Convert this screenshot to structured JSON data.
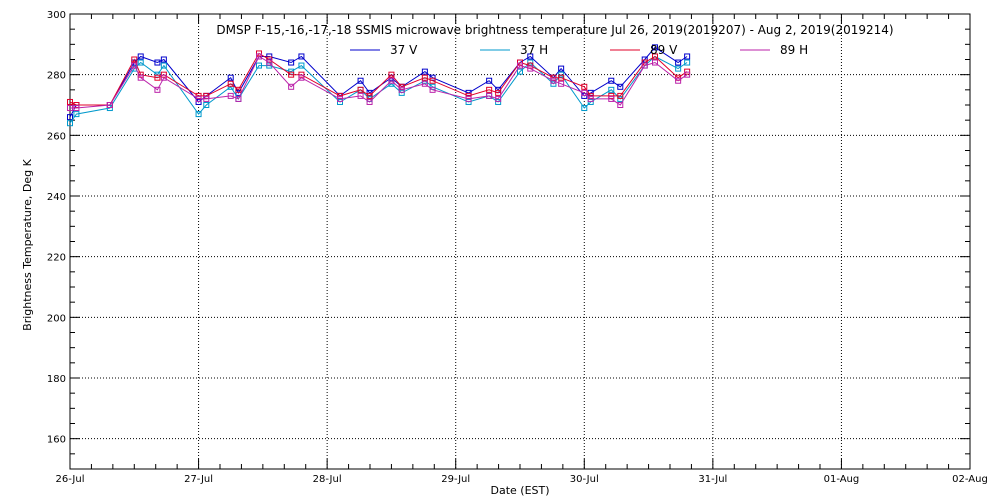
{
  "chart_data": {
    "type": "line",
    "title": "DMSP F-15,-16,-17,-18 SSMIS microwave brightness temperature Jul 26, 2019(2019207) - Aug  2, 2019(2019214)",
    "xlabel": "Date (EST)",
    "ylabel": "Brightness Temperature, Deg K",
    "x_domain_days": [
      0,
      7
    ],
    "x_ticks": [
      {
        "day": 0,
        "label": "26-Jul"
      },
      {
        "day": 1,
        "label": "27-Jul"
      },
      {
        "day": 2,
        "label": "28-Jul"
      },
      {
        "day": 3,
        "label": "29-Jul"
      },
      {
        "day": 4,
        "label": "30-Jul"
      },
      {
        "day": 5,
        "label": "31-Jul"
      },
      {
        "day": 6,
        "label": "01-Aug"
      },
      {
        "day": 7,
        "label": "02-Aug"
      }
    ],
    "ylim": [
      150,
      300
    ],
    "y_ticks": [
      160,
      180,
      200,
      220,
      240,
      260,
      280,
      300
    ],
    "grid": true,
    "legend_position": "top-center",
    "series": [
      {
        "name": "37 V",
        "color": "#0000cc",
        "points": [
          [
            0.0,
            266
          ],
          [
            0.05,
            270
          ],
          [
            0.31,
            270
          ],
          [
            0.5,
            284
          ],
          [
            0.55,
            286
          ],
          [
            0.68,
            284
          ],
          [
            0.73,
            285
          ],
          [
            1.0,
            271
          ],
          [
            1.06,
            273
          ],
          [
            1.25,
            279
          ],
          [
            1.31,
            274
          ],
          [
            1.47,
            286
          ],
          [
            1.55,
            286
          ],
          [
            1.72,
            284
          ],
          [
            1.8,
            286
          ],
          [
            2.1,
            273
          ],
          [
            2.26,
            278
          ],
          [
            2.33,
            274
          ],
          [
            2.5,
            279
          ],
          [
            2.58,
            276
          ],
          [
            2.76,
            281
          ],
          [
            2.82,
            279
          ],
          [
            3.1,
            274
          ],
          [
            3.26,
            278
          ],
          [
            3.33,
            275
          ],
          [
            3.5,
            284
          ],
          [
            3.58,
            286
          ],
          [
            3.76,
            279
          ],
          [
            3.82,
            282
          ],
          [
            4.0,
            273
          ],
          [
            4.05,
            274
          ],
          [
            4.21,
            278
          ],
          [
            4.28,
            276
          ],
          [
            4.47,
            285
          ],
          [
            4.55,
            289
          ],
          [
            4.73,
            284
          ],
          [
            4.8,
            286
          ]
        ]
      },
      {
        "name": "37 H",
        "color": "#0099cc",
        "points": [
          [
            0.0,
            264
          ],
          [
            0.05,
            267
          ],
          [
            0.31,
            269
          ],
          [
            0.5,
            282
          ],
          [
            0.55,
            284
          ],
          [
            0.68,
            280
          ],
          [
            0.73,
            283
          ],
          [
            1.0,
            267
          ],
          [
            1.06,
            270
          ],
          [
            1.25,
            276
          ],
          [
            1.31,
            272
          ],
          [
            1.47,
            283
          ],
          [
            1.55,
            283
          ],
          [
            1.72,
            281
          ],
          [
            1.8,
            283
          ],
          [
            2.1,
            271
          ],
          [
            2.26,
            275
          ],
          [
            2.33,
            272
          ],
          [
            2.5,
            277
          ],
          [
            2.58,
            274
          ],
          [
            2.76,
            278
          ],
          [
            2.82,
            276
          ],
          [
            3.1,
            271
          ],
          [
            3.26,
            273
          ],
          [
            3.33,
            271
          ],
          [
            3.5,
            281
          ],
          [
            3.58,
            284
          ],
          [
            3.76,
            277
          ],
          [
            3.82,
            280
          ],
          [
            4.0,
            269
          ],
          [
            4.05,
            271
          ],
          [
            4.21,
            275
          ],
          [
            4.28,
            272
          ],
          [
            4.47,
            283
          ],
          [
            4.55,
            286
          ],
          [
            4.73,
            282
          ],
          [
            4.8,
            284
          ]
        ]
      },
      {
        "name": "89 V",
        "color": "#e0002a",
        "points": [
          [
            0.0,
            271
          ],
          [
            0.05,
            270
          ],
          [
            0.31,
            270
          ],
          [
            0.5,
            285
          ],
          [
            0.55,
            280
          ],
          [
            0.68,
            279
          ],
          [
            0.73,
            280
          ],
          [
            1.0,
            273
          ],
          [
            1.06,
            273
          ],
          [
            1.25,
            277
          ],
          [
            1.31,
            275
          ],
          [
            1.47,
            287
          ],
          [
            1.55,
            285
          ],
          [
            1.72,
            280
          ],
          [
            1.8,
            280
          ],
          [
            2.1,
            273
          ],
          [
            2.26,
            275
          ],
          [
            2.33,
            273
          ],
          [
            2.5,
            280
          ],
          [
            2.58,
            276
          ],
          [
            2.76,
            279
          ],
          [
            2.82,
            278
          ],
          [
            3.1,
            273
          ],
          [
            3.26,
            275
          ],
          [
            3.33,
            274
          ],
          [
            3.5,
            284
          ],
          [
            3.58,
            283
          ],
          [
            3.76,
            279
          ],
          [
            3.82,
            279
          ],
          [
            4.0,
            276
          ],
          [
            4.05,
            273
          ],
          [
            4.21,
            273
          ],
          [
            4.28,
            273
          ],
          [
            4.47,
            284
          ],
          [
            4.55,
            286
          ],
          [
            4.73,
            279
          ],
          [
            4.8,
            281
          ]
        ]
      },
      {
        "name": "89 H",
        "color": "#bb22aa",
        "points": [
          [
            0.0,
            269
          ],
          [
            0.05,
            269
          ],
          [
            0.31,
            270
          ],
          [
            0.5,
            283
          ],
          [
            0.55,
            279
          ],
          [
            0.68,
            275
          ],
          [
            0.73,
            279
          ],
          [
            1.0,
            272
          ],
          [
            1.06,
            272
          ],
          [
            1.25,
            273
          ],
          [
            1.31,
            272
          ],
          [
            1.47,
            286
          ],
          [
            1.55,
            284
          ],
          [
            1.72,
            276
          ],
          [
            1.8,
            279
          ],
          [
            2.1,
            272
          ],
          [
            2.26,
            273
          ],
          [
            2.33,
            271
          ],
          [
            2.5,
            278
          ],
          [
            2.58,
            275
          ],
          [
            2.76,
            277
          ],
          [
            2.82,
            275
          ],
          [
            3.1,
            272
          ],
          [
            3.26,
            273
          ],
          [
            3.33,
            272
          ],
          [
            3.5,
            283
          ],
          [
            3.58,
            282
          ],
          [
            3.76,
            278
          ],
          [
            3.82,
            277
          ],
          [
            4.0,
            274
          ],
          [
            4.05,
            272
          ],
          [
            4.21,
            272
          ],
          [
            4.28,
            270
          ],
          [
            4.47,
            283
          ],
          [
            4.55,
            284
          ],
          [
            4.73,
            278
          ],
          [
            4.8,
            280
          ]
        ]
      }
    ]
  }
}
